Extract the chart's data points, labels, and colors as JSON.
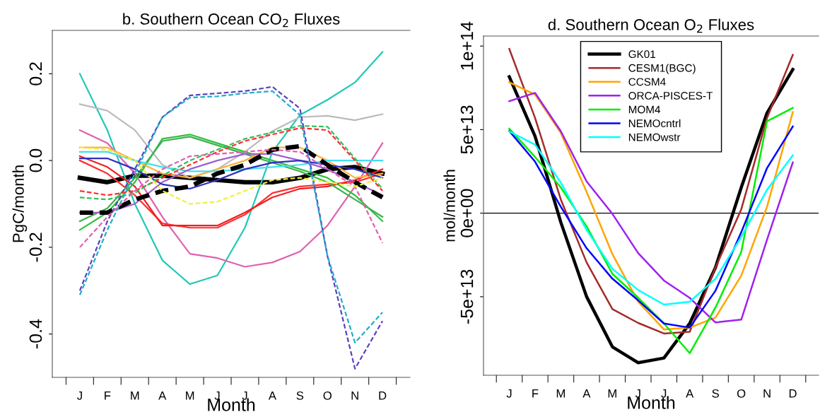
{
  "chart_data": [
    {
      "type": "line",
      "title": "b. Southern Ocean CO$_{2}$ Fluxes",
      "xlabel": "Month",
      "ylabel": "PgC/month",
      "categories": [
        "J",
        "F",
        "M",
        "A",
        "M",
        "J",
        "J",
        "A",
        "S",
        "O",
        "N",
        "D"
      ],
      "ylim": [
        -0.5,
        0.3
      ],
      "yticks": [
        {
          "value": -0.4,
          "label": "-0.4"
        },
        {
          "value": -0.2,
          "label": "-0.2"
        },
        {
          "value": 0.0,
          "label": "0.0"
        },
        {
          "value": 0.2,
          "label": "0.2"
        }
      ],
      "grid": false,
      "legend": false,
      "series": [
        {
          "color": "#000000",
          "values": [
            -0.04,
            -0.05,
            -0.035,
            -0.035,
            -0.04,
            -0.045,
            -0.05,
            -0.05,
            -0.04,
            -0.02,
            -0.015,
            -0.03
          ]
        },
        {
          "color": "#000000",
          "line_style": "dashed",
          "values": [
            -0.12,
            -0.12,
            -0.09,
            -0.07,
            -0.06,
            -0.03,
            -0.01,
            0.025,
            0.033,
            -0.01,
            -0.05,
            -0.085
          ]
        },
        {
          "color": "#20c8b8",
          "values": [
            0.2,
            0.07,
            -0.1,
            -0.23,
            -0.285,
            -0.265,
            -0.155,
            0.02,
            0.105,
            0.14,
            0.18,
            0.25
          ]
        },
        {
          "color": "#bbbbbb",
          "values": [
            0.13,
            0.115,
            0.07,
            -0.01,
            -0.04,
            -0.02,
            0.02,
            0.068,
            0.1,
            0.103,
            0.093,
            0.107
          ]
        },
        {
          "color": "#e060b0",
          "values": [
            0.07,
            0.04,
            -0.03,
            -0.13,
            -0.215,
            -0.225,
            -0.245,
            -0.235,
            -0.21,
            -0.15,
            -0.06,
            0.04
          ]
        },
        {
          "color": "#ff3030",
          "values": [
            0.0,
            -0.03,
            -0.08,
            -0.145,
            -0.155,
            -0.155,
            -0.125,
            -0.075,
            -0.06,
            -0.055,
            -0.05,
            -0.03
          ]
        },
        {
          "color": "#ee2020",
          "values": [
            0.01,
            -0.015,
            -0.06,
            -0.15,
            -0.15,
            -0.15,
            -0.12,
            -0.085,
            -0.065,
            -0.06,
            -0.045,
            -0.02
          ]
        },
        {
          "color": "#30c040",
          "values": [
            -0.16,
            -0.12,
            -0.05,
            0.05,
            0.06,
            0.04,
            0.02,
            0.0,
            -0.02,
            -0.04,
            -0.08,
            -0.14
          ]
        },
        {
          "color": "#40b050",
          "values": [
            -0.14,
            -0.11,
            -0.04,
            0.045,
            0.055,
            0.035,
            0.015,
            -0.005,
            -0.025,
            -0.05,
            -0.09,
            -0.13
          ]
        },
        {
          "color": "#6040c0",
          "line_style": "dashed",
          "values": [
            -0.3,
            -0.14,
            -0.02,
            0.1,
            0.15,
            0.155,
            0.16,
            0.17,
            0.12,
            -0.22,
            -0.48,
            -0.37
          ]
        },
        {
          "color": "#20b0c8",
          "line_style": "dashed",
          "values": [
            -0.31,
            -0.16,
            -0.03,
            0.1,
            0.145,
            0.148,
            0.155,
            0.16,
            0.105,
            -0.22,
            -0.42,
            -0.35
          ]
        },
        {
          "color": "#ff3030",
          "line_style": "dashed",
          "values": [
            -0.07,
            -0.08,
            -0.07,
            -0.04,
            -0.01,
            0.02,
            0.045,
            0.06,
            0.075,
            0.07,
            0.0,
            -0.07
          ]
        },
        {
          "color": "#30c060",
          "line_style": "dashed",
          "values": [
            -0.085,
            -0.09,
            -0.075,
            -0.035,
            0.0,
            0.025,
            0.05,
            0.065,
            0.08,
            0.078,
            0.005,
            -0.065
          ]
        },
        {
          "color": "#e060b0",
          "line_style": "dashed",
          "values": [
            -0.2,
            -0.13,
            -0.07,
            -0.02,
            0.01,
            0.015,
            0.02,
            0.025,
            0.02,
            -0.02,
            -0.06,
            -0.19
          ]
        },
        {
          "color": "#f0f040",
          "line_style": "dashed",
          "values": [
            0.03,
            0.025,
            0.0,
            -0.07,
            -0.1,
            -0.095,
            -0.07,
            -0.045,
            -0.04,
            -0.05,
            -0.06,
            -0.04
          ]
        },
        {
          "color": "#ffb040",
          "values": [
            0.03,
            0.03,
            0.0,
            -0.03,
            -0.04,
            -0.02,
            0.0,
            0.03,
            0.03,
            0.0,
            -0.04,
            -0.03
          ]
        },
        {
          "color": "#40e0f0",
          "values": [
            0.02,
            0.02,
            0.0,
            -0.015,
            -0.025,
            -0.025,
            -0.02,
            -0.015,
            -0.01,
            0.0,
            0.0,
            0.0
          ]
        },
        {
          "color": "#a060d0",
          "values": [
            -0.12,
            -0.12,
            -0.1,
            -0.05,
            -0.02,
            0.0,
            0.015,
            0.015,
            0.0,
            -0.02,
            -0.05,
            -0.08
          ]
        },
        {
          "color": "#3030c0",
          "values": [
            0.005,
            0.005,
            -0.02,
            -0.055,
            -0.065,
            -0.045,
            -0.02,
            -0.005,
            0.0,
            -0.01,
            -0.02,
            -0.04
          ]
        }
      ]
    },
    {
      "type": "line",
      "title": "d. Southern Ocean O$_{2}$ Fluxes",
      "xlabel": "Month",
      "ylabel": "mol/month",
      "categories": [
        "J",
        "F",
        "M",
        "A",
        "M",
        "J",
        "J",
        "A",
        "S",
        "O",
        "N",
        "D"
      ],
      "ylim": [
        -97000000000000.0,
        106000000000000.0
      ],
      "yticks": [
        {
          "value": -50000000000000.0,
          "label": "-5e+13"
        },
        {
          "value": 0,
          "label": "0e+00"
        },
        {
          "value": 50000000000000.0,
          "label": "5e+13"
        },
        {
          "value": 100000000000000.0,
          "label": "1e+14"
        }
      ],
      "grid": false,
      "legend": "top",
      "ref_lines": [
        {
          "axis": "y",
          "value": 0,
          "color": "#000000"
        }
      ],
      "series": [
        {
          "name": "GK01",
          "color": "#000000",
          "values": [
            81600000000000.0,
            46000000000000.0,
            -5500000000000.0,
            -50000000000000.0,
            -80000000000000.0,
            -89500000000000.0,
            -86700000000000.0,
            -66000000000000.0,
            -32500000000000.0,
            15400000000000.0,
            60000000000000.0,
            86000000000000.0
          ]
        },
        {
          "name": "CESM1(BGC)",
          "color": "#a52a2a",
          "values": [
            98300000000000.0,
            57000000000000.0,
            8100000000000.0,
            -29500000000000.0,
            -57400000000000.0,
            -65700000000000.0,
            -72000000000000.0,
            -71000000000000.0,
            -32500000000000.0,
            2300000000000.0,
            57000000000000.0,
            94700000000000.0
          ]
        },
        {
          "name": "CCSM4",
          "color": "#ffa500",
          "values": [
            78300000000000.0,
            71000000000000.0,
            48000000000000.0,
            12700000000000.0,
            -24500000000000.0,
            -53000000000000.0,
            -69600000000000.0,
            -68500000000000.0,
            -62500000000000.0,
            -37400000000000.0,
            3800000000000.0,
            60500000000000.0
          ]
        },
        {
          "name": "ORCA-PISCES-T",
          "color": "#a020f0",
          "values": [
            67000000000000.0,
            72000000000000.0,
            49000000000000.0,
            19000000000000.0,
            -400000000000.0,
            -23900000000000.0,
            -40300000000000.0,
            -50700000000000.0,
            -65400000000000.0,
            -63700000000000.0,
            -15900000000000.0,
            30400000000000.0
          ]
        },
        {
          "name": "MOM4",
          "color": "#00ee00",
          "values": [
            50600000000000.0,
            33600000000000.0,
            15400000000000.0,
            -7900000000000.0,
            -36300000000000.0,
            -50600000000000.0,
            -66000000000000.0,
            -83800000000000.0,
            -56500000000000.0,
            -23200000000000.0,
            55000000000000.0,
            63000000000000.0
          ]
        },
        {
          "name": "NEMOcntrl",
          "color": "#0000ff",
          "values": [
            49200000000000.0,
            30800000000000.0,
            3800000000000.0,
            -21000000000000.0,
            -39200000000000.0,
            -52200000000000.0,
            -66000000000000.0,
            -68500000000000.0,
            -46400000000000.0,
            -11400000000000.0,
            27000000000000.0,
            51900000000000.0
          ]
        },
        {
          "name": "NEMOwstr",
          "color": "#00ffff",
          "values": [
            48900000000000.0,
            41000000000000.0,
            18300000000000.0,
            -10000000000000.0,
            -33300000000000.0,
            -46000000000000.0,
            -54700000000000.0,
            -53000000000000.0,
            -39200000000000.0,
            -14300000000000.0,
            14000000000000.0,
            34600000000000.0
          ]
        }
      ]
    }
  ]
}
